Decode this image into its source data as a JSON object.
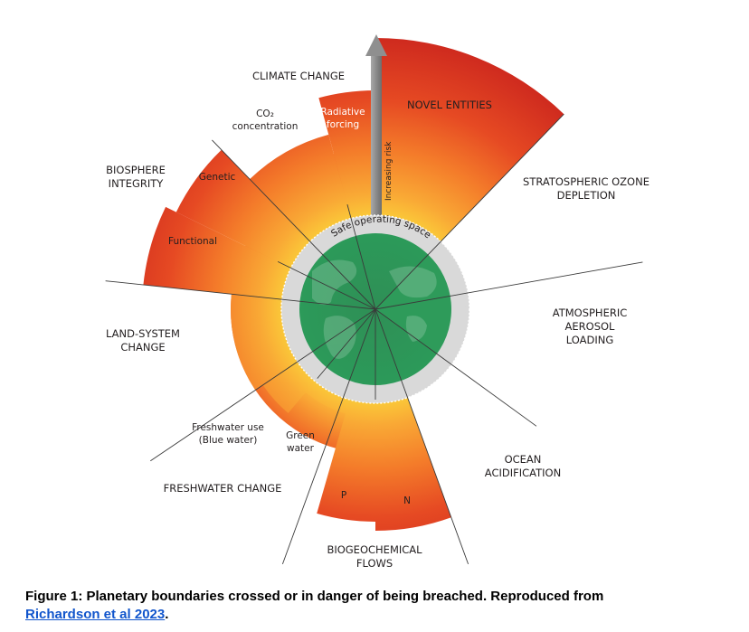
{
  "diagram": {
    "boundaries": [
      {
        "label": "CLIMATE CHANGE",
        "status": "exceeded"
      },
      {
        "label": "NOVEL ENTITIES",
        "status": "exceeded"
      },
      {
        "label": "STRATOSPHERIC OZONE DEPLETION",
        "status": "safe"
      },
      {
        "label": "ATMOSPHERIC AEROSOL LOADING",
        "status": "safe"
      },
      {
        "label": "OCEAN ACIDIFICATION",
        "status": "safe"
      },
      {
        "label": "BIOGEOCHEMICAL FLOWS",
        "status": "exceeded"
      },
      {
        "label": "FRESHWATER CHANGE",
        "status": "exceeded"
      },
      {
        "label": "LAND-SYSTEM CHANGE",
        "status": "exceeded"
      },
      {
        "label": "BIOSPHERE INTEGRITY",
        "status": "exceeded"
      }
    ],
    "sub_labels": {
      "co2": "CO₂ concentration",
      "radiative": "Radiative forcing",
      "genetic": "Genetic",
      "functional": "Functional",
      "blue_water": "Freshwater use (Blue water)",
      "green_water": "Green water",
      "p": "P",
      "n": "N"
    },
    "safe_space_label": "Safe operating space",
    "risk_arrow_label": "Increasing risk",
    "colors": {
      "safe": "#2e9b5a",
      "zone_orange": "#f7941d",
      "zone_red": "#d7261e",
      "ozone_gray": "#d9d9d9",
      "arrow": "#8c8c8c"
    }
  },
  "caption": {
    "text": "Figure 1: Planetary boundaries crossed or in danger of being breached. Reproduced from",
    "link_text": "Richardson et al 2023",
    "after": "."
  }
}
